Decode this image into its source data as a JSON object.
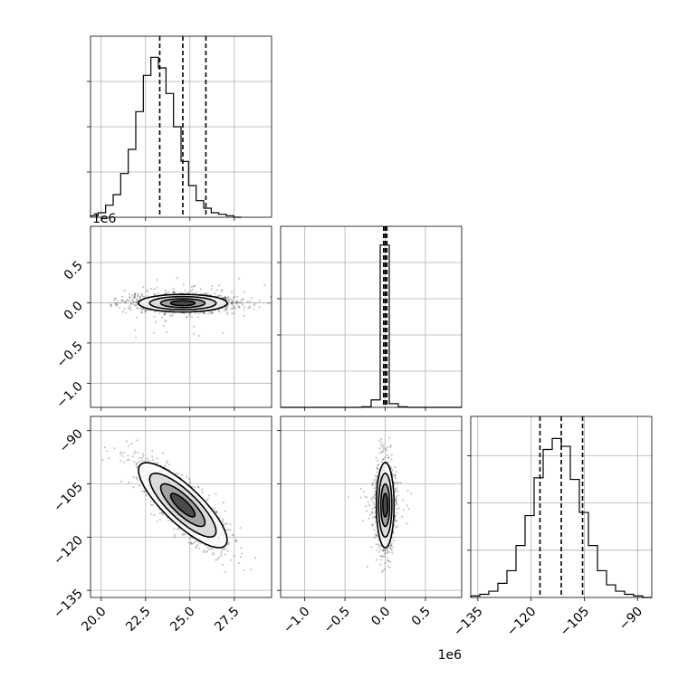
{
  "chart_data": [
    {
      "type": "histogram",
      "panel": "hist-p0",
      "x_range": [
        19.4,
        29.6
      ],
      "bin_edges_start": 19.4,
      "bin_width": 0.425,
      "counts": [
        1,
        3,
        8,
        15,
        29,
        45,
        70,
        94,
        106,
        99,
        82,
        60,
        37,
        21,
        11,
        6,
        3,
        2,
        1,
        0
      ],
      "ylim": [
        0,
        120
      ],
      "quantiles": [
        23.3,
        24.6,
        25.9
      ],
      "y_grid": [
        30,
        60,
        90
      ],
      "x_grid": [
        20.0,
        22.5,
        25.0,
        27.5
      ]
    },
    {
      "type": "scatter-contour",
      "panel": "p0-p1",
      "x_range": [
        19.4,
        29.6
      ],
      "y_range": [
        -1.3,
        0.95
      ],
      "y_ticks": [
        -1.0,
        -0.5,
        0.0,
        0.5
      ],
      "y_tick_labels": [
        "−1.0",
        "−0.5",
        "0.0",
        "0.5"
      ],
      "y_offset_label": "1e6",
      "x_ticks": [
        20.0,
        22.5,
        25.0,
        27.5
      ],
      "center": [
        24.6,
        -0.005
      ],
      "spread": [
        1.25,
        0.055
      ],
      "contour_halfwidths": [
        [
          0.7,
          0.012
        ],
        [
          1.5,
          0.028
        ],
        [
          2.4,
          0.048
        ]
      ]
    },
    {
      "type": "histogram",
      "panel": "hist-p1",
      "x_range": [
        -1.3,
        0.95
      ],
      "bin_edges_start": -1.3,
      "bin_width": 0.1125,
      "counts": [
        0,
        0,
        0,
        0,
        0,
        0,
        0,
        0,
        0,
        1,
        12,
        260,
        6,
        1,
        0,
        0,
        0,
        0,
        0,
        0
      ],
      "ylim": [
        0,
        290
      ],
      "quantiles": [
        -0.02,
        0.0,
        0.02
      ],
      "y_grid": [
        58,
        116,
        174,
        232
      ],
      "x_grid": [
        -1.0,
        -0.5,
        0.0,
        0.5
      ]
    },
    {
      "type": "scatter-contour",
      "panel": "p0-p2",
      "x_range": [
        19.4,
        29.6
      ],
      "y_range": [
        -137,
        -86
      ],
      "y_ticks": [
        -135,
        -120,
        -105,
        -90
      ],
      "y_tick_labels": [
        "−135",
        "−120",
        "−105",
        "−90"
      ],
      "x_ticks": [
        20.0,
        22.5,
        25.0,
        27.5
      ],
      "x_tick_labels": [
        "20.0",
        "22.5",
        "25.0",
        "27.5"
      ],
      "center": [
        24.6,
        -111
      ],
      "correlation": -0.82,
      "spread": [
        1.25,
        6.0
      ]
    },
    {
      "type": "scatter-contour",
      "panel": "p1-p2",
      "x_range": [
        -1.3,
        0.95
      ],
      "y_range": [
        -137,
        -86
      ],
      "y_ticks": [
        -135,
        -120,
        -105,
        -90
      ],
      "x_ticks": [
        -1.0,
        -0.5,
        0.0,
        0.5
      ],
      "x_tick_labels": [
        "−1.0",
        "−0.5",
        "0.0",
        "0.5"
      ],
      "x_offset_label": "1e6",
      "center": [
        0.0,
        -111
      ],
      "spread": [
        0.055,
        6.0
      ]
    },
    {
      "type": "histogram",
      "panel": "hist-p2",
      "x_range": [
        -137,
        -86
      ],
      "bin_edges_start": -137,
      "bin_width": 2.55,
      "counts": [
        1,
        2,
        4,
        9,
        17,
        33,
        52,
        76,
        94,
        101,
        96,
        75,
        54,
        33,
        17,
        8,
        4,
        2,
        1,
        0
      ],
      "ylim": [
        0,
        115
      ],
      "quantiles": [
        -117.5,
        -111.5,
        -105.5
      ],
      "y_grid": [
        30,
        60,
        90
      ],
      "x_grid": [
        -135,
        -120,
        -105,
        -90
      ],
      "x_ticks": [
        -135,
        -120,
        -105,
        -90
      ],
      "x_tick_labels": [
        "−135",
        "−120",
        "−105",
        "−90"
      ]
    }
  ]
}
